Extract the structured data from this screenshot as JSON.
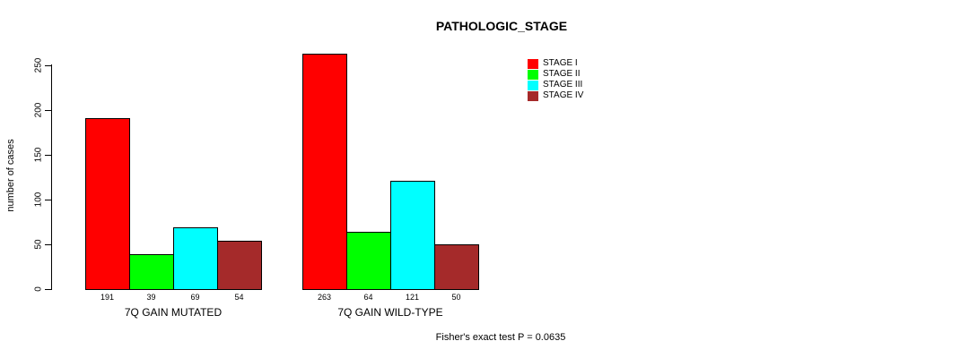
{
  "chart_data": {
    "type": "bar",
    "title": "PATHOLOGIC_STAGE",
    "ylabel": "number of cases",
    "ylim": [
      0,
      250
    ],
    "yticks": [
      0,
      50,
      100,
      150,
      200,
      250
    ],
    "grid": false,
    "legend_position": "top-right",
    "categories": [
      "7Q GAIN MUTATED",
      "7Q GAIN WILD-TYPE"
    ],
    "groups": [
      {
        "label": "7Q GAIN MUTATED",
        "values": [
          191,
          39,
          69,
          54
        ]
      },
      {
        "label": "7Q GAIN WILD-TYPE",
        "values": [
          263,
          64,
          121,
          50
        ]
      }
    ],
    "series": [
      {
        "name": "STAGE I",
        "color": "#FF0000"
      },
      {
        "name": "STAGE II",
        "color": "#00FF00"
      },
      {
        "name": "STAGE III",
        "color": "#00FFFF"
      },
      {
        "name": "STAGE IV",
        "color": "#A52A2A"
      }
    ],
    "annotation": "Fisher's exact test P = 0.0635"
  }
}
